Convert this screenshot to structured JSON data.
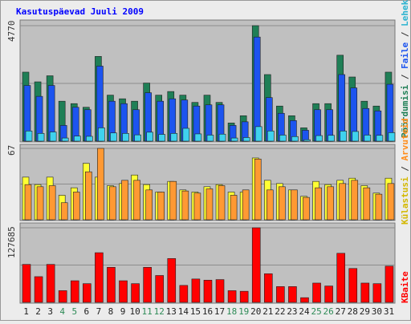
{
  "title": "Kasutuspäevad Juuli 2009",
  "colors": {
    "background": "#ececec",
    "panel": "#c0c0c0",
    "title": "#0000ff",
    "pages_green": "#1f7f56",
    "files_blue": "#1c54ef",
    "hits_cyan": "#3fd2ee",
    "visits_yellow": "#ffff33",
    "hosts_orange": "#ff9933",
    "kbytes_red": "#ff0000",
    "weekend": "#2e8b57"
  },
  "legend": {
    "top": [
      {
        "text": "Pöördumisi",
        "color": "#1f7f56"
      },
      {
        "text": " / ",
        "color": "#333333"
      },
      {
        "text": "Faile",
        "color": "#1c54ef"
      },
      {
        "text": " / ",
        "color": "#333333"
      },
      {
        "text": "Lehekülgi",
        "color": "#2bb3d0"
      }
    ],
    "middle": [
      {
        "text": "Külastusi",
        "color": "#d4b800"
      },
      {
        "text": " / ",
        "color": "#333333"
      },
      {
        "text": "Arvuteid",
        "color": "#ff8c1a"
      }
    ],
    "bottom": [
      {
        "text": "KBaite",
        "color": "#ff0000"
      }
    ]
  },
  "chart_data": {
    "type": "bar",
    "title": "Kasutuspäevad Juuli 2009",
    "categories": [
      "1",
      "2",
      "3",
      "4",
      "5",
      "6",
      "7",
      "8",
      "9",
      "10",
      "11",
      "12",
      "13",
      "14",
      "15",
      "16",
      "17",
      "18",
      "19",
      "20",
      "21",
      "22",
      "23",
      "24",
      "25",
      "26",
      "27",
      "28",
      "29",
      "30",
      "31"
    ],
    "weekend_days": [
      "4",
      "5",
      "11",
      "12",
      "18",
      "19",
      "25",
      "26"
    ],
    "panels": [
      {
        "name": "top",
        "ymax_label": "4770",
        "ylim": [
          0,
          4770
        ],
        "grid": true,
        "series": [
          {
            "name": "Pöördumisi",
            "values": [
              2850,
              2450,
              2700,
              1650,
              1550,
              1400,
              3500,
              1900,
              1750,
              1650,
              2400,
              1900,
              2050,
              1900,
              1600,
              1900,
              1600,
              750,
              1050,
              4770,
              2750,
              1450,
              1050,
              550,
              1550,
              1550,
              3550,
              2650,
              1650,
              1450,
              2850
            ]
          },
          {
            "name": "Faile",
            "values": [
              2300,
              1850,
              2300,
              650,
              1400,
              1300,
              3100,
              1650,
              1550,
              1300,
              2000,
              1650,
              1750,
              1700,
              1450,
              1500,
              1500,
              650,
              800,
              4300,
              1800,
              1150,
              850,
              450,
              1300,
              1300,
              2750,
              2200,
              1350,
              1250,
              2350
            ]
          },
          {
            "name": "Lehekülgi",
            "values": [
              420,
              320,
              380,
              130,
              210,
              200,
              550,
              340,
              320,
              260,
              370,
              280,
              320,
              530,
              300,
              250,
              290,
              130,
              150,
              600,
              420,
              250,
              190,
              60,
              230,
              240,
              420,
              400,
              250,
              240,
              350
            ]
          }
        ]
      },
      {
        "name": "middle",
        "ymax_label": "67",
        "ylim": [
          0,
          67
        ],
        "grid": true,
        "series": [
          {
            "name": "Külastusi",
            "values": [
              40,
              33,
              40,
              23,
              30,
              53,
              40,
              32,
              34,
              42,
              33,
              26,
              36,
              28,
              26,
              31,
              33,
              26,
              26,
              58,
              37,
              34,
              28,
              22,
              36,
              33,
              37,
              39,
              32,
              25,
              39
            ]
          },
          {
            "name": "Arvuteid",
            "values": [
              33,
              31,
              32,
              16,
              26,
              45,
              67,
              31,
              37,
              37,
              28,
              26,
              36,
              27,
              25,
              29,
              32,
              23,
              28,
              57,
              28,
              31,
              28,
              21,
              30,
              31,
              34,
              37,
              30,
              24,
              34
            ]
          }
        ]
      },
      {
        "name": "bottom",
        "ymax_label": "127685",
        "ylim": [
          0,
          127685
        ],
        "grid": true,
        "series": [
          {
            "name": "KBaite",
            "values": [
              65000,
              44000,
              65000,
              20000,
              37000,
              32000,
              85000,
              60000,
              37000,
              32000,
              60000,
              46000,
              75000,
              29000,
              40000,
              38000,
              39000,
              20000,
              19000,
              127685,
              49000,
              27000,
              27000,
              8000,
              33000,
              28000,
              84000,
              58000,
              33000,
              32000,
              62000
            ]
          }
        ]
      }
    ]
  }
}
